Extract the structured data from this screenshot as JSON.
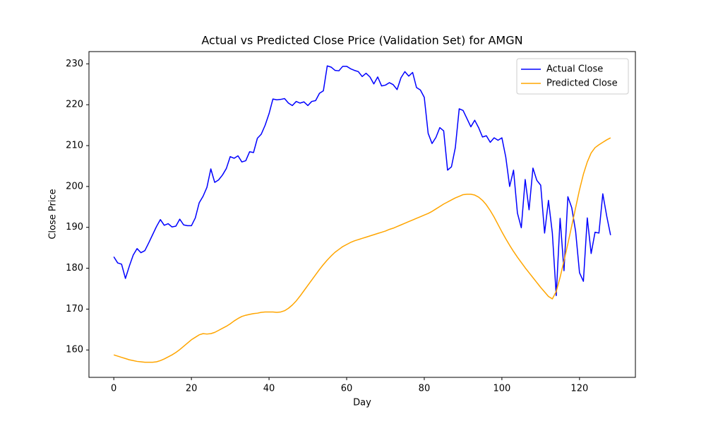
{
  "chart_data": {
    "type": "line",
    "title": "Actual vs Predicted Close Price (Validation Set) for AMGN",
    "x_label": "Day",
    "y_label": "Close Price",
    "x": [
      0,
      1,
      2,
      3,
      4,
      5,
      6,
      7,
      8,
      9,
      10,
      11,
      12,
      13,
      14,
      15,
      16,
      17,
      18,
      19,
      20,
      21,
      22,
      23,
      24,
      25,
      26,
      27,
      28,
      29,
      30,
      31,
      32,
      33,
      34,
      35,
      36,
      37,
      38,
      39,
      40,
      41,
      42,
      43,
      44,
      45,
      46,
      47,
      48,
      49,
      50,
      51,
      52,
      53,
      54,
      55,
      56,
      57,
      58,
      59,
      60,
      61,
      62,
      63,
      64,
      65,
      66,
      67,
      68,
      69,
      70,
      71,
      72,
      73,
      74,
      75,
      76,
      77,
      78,
      79,
      80,
      81,
      82,
      83,
      84,
      85,
      86,
      87,
      88,
      89,
      90,
      91,
      92,
      93,
      94,
      95,
      96,
      97,
      98,
      99,
      100,
      101,
      102,
      103,
      104,
      105,
      106,
      107,
      108,
      109,
      110,
      111,
      112,
      113,
      114,
      115,
      116,
      117,
      118,
      119,
      120,
      121,
      122,
      123,
      124,
      125,
      126,
      127,
      128
    ],
    "series": [
      {
        "name": "Actual Close",
        "color": "#0000ff",
        "values": [
          182.8,
          181.3,
          181.0,
          177.5,
          180.5,
          183.2,
          184.8,
          183.8,
          184.3,
          186.2,
          188.2,
          190.2,
          191.9,
          190.5,
          190.9,
          190.1,
          190.3,
          192.0,
          190.6,
          190.4,
          190.4,
          192.3,
          196.0,
          197.6,
          199.8,
          204.3,
          201.0,
          201.6,
          202.8,
          204.4,
          207.3,
          206.9,
          207.5,
          206.0,
          206.3,
          208.5,
          208.3,
          211.8,
          212.8,
          215.0,
          217.8,
          221.4,
          221.2,
          221.3,
          221.5,
          220.4,
          219.8,
          220.8,
          220.4,
          220.7,
          219.8,
          220.8,
          221.0,
          222.8,
          223.4,
          229.5,
          229.2,
          228.4,
          228.3,
          229.4,
          229.4,
          228.8,
          228.4,
          228.1,
          226.9,
          227.7,
          226.8,
          225.1,
          226.8,
          224.6,
          224.8,
          225.4,
          224.9,
          223.7,
          226.6,
          228.1,
          227.0,
          227.9,
          224.2,
          223.6,
          221.8,
          213.0,
          210.5,
          212.0,
          214.4,
          213.6,
          204.0,
          204.8,
          209.5,
          219.0,
          218.6,
          216.6,
          214.6,
          216.2,
          214.4,
          212.1,
          212.4,
          210.8,
          211.9,
          211.3,
          211.9,
          207.2,
          200.0,
          204.0,
          193.5,
          189.9,
          201.7,
          194.3,
          204.5,
          201.5,
          200.3,
          188.6,
          196.6,
          188.6,
          173.3,
          192.2,
          179.4,
          197.5,
          194.8,
          189.0,
          178.9,
          176.8,
          192.3,
          183.6,
          188.8,
          188.6,
          198.2,
          192.8,
          188.1
        ]
      },
      {
        "name": "Predicted Close",
        "color": "#ffa500",
        "values": [
          158.8,
          158.5,
          158.2,
          157.9,
          157.6,
          157.4,
          157.2,
          157.1,
          157.0,
          157.0,
          157.0,
          157.1,
          157.4,
          157.8,
          158.3,
          158.8,
          159.4,
          160.1,
          160.9,
          161.7,
          162.5,
          163.1,
          163.7,
          164.0,
          163.9,
          164.0,
          164.3,
          164.8,
          165.3,
          165.8,
          166.4,
          167.1,
          167.7,
          168.2,
          168.5,
          168.7,
          168.9,
          169.0,
          169.2,
          169.3,
          169.3,
          169.3,
          169.2,
          169.3,
          169.6,
          170.2,
          171.0,
          172.0,
          173.2,
          174.5,
          175.8,
          177.1,
          178.4,
          179.7,
          180.9,
          182.0,
          183.0,
          183.9,
          184.6,
          185.3,
          185.8,
          186.3,
          186.7,
          187.0,
          187.3,
          187.6,
          187.9,
          188.2,
          188.5,
          188.8,
          189.1,
          189.5,
          189.8,
          190.2,
          190.6,
          191.0,
          191.4,
          191.8,
          192.2,
          192.6,
          193.0,
          193.4,
          193.9,
          194.5,
          195.1,
          195.7,
          196.2,
          196.7,
          197.2,
          197.6,
          198.0,
          198.1,
          198.1,
          197.9,
          197.4,
          196.6,
          195.5,
          194.1,
          192.5,
          190.7,
          188.9,
          187.2,
          185.6,
          184.1,
          182.7,
          181.4,
          180.1,
          178.9,
          177.7,
          176.5,
          175.3,
          174.2,
          173.1,
          172.5,
          174.3,
          177.8,
          181.8,
          186.0,
          190.4,
          194.8,
          199.2,
          203.0,
          206.0,
          208.2,
          209.5,
          210.2,
          210.8,
          211.4,
          211.9
        ]
      }
    ],
    "xlim": [
      -6.4,
      134.4
    ],
    "xticks": [
      0,
      20,
      40,
      60,
      80,
      100,
      120
    ],
    "ylim": [
      153.3,
      233.0
    ],
    "yticks": [
      160,
      170,
      180,
      190,
      200,
      210,
      220,
      230
    ],
    "grid": false,
    "legend": "upper right"
  }
}
